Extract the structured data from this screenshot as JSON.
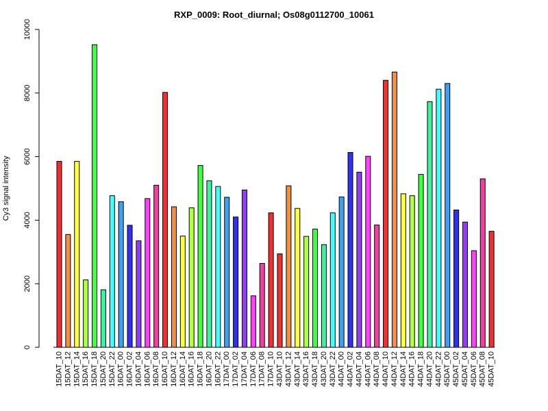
{
  "chart_data": {
    "type": "bar",
    "title": "RXP_0009: Root_diurnal; Os08g0112700_10061",
    "xlabel": "",
    "ylabel": "Cy3 signal intensity",
    "ylim": [
      0,
      10000
    ],
    "yticks": [
      0,
      2000,
      4000,
      6000,
      8000,
      10000
    ],
    "grid": false,
    "legend": "none",
    "categories": [
      "15DAT_10",
      "15DAT_12",
      "15DAT_14",
      "15DAT_16",
      "15DAT_18",
      "15DAT_20",
      "15DAT_22",
      "16DAT_00",
      "16DAT_02",
      "16DAT_04",
      "16DAT_06",
      "16DAT_08",
      "16DAT_10",
      "16DAT_12",
      "16DAT_14",
      "16DAT_16",
      "16DAT_18",
      "16DAT_20",
      "16DAT_22",
      "17DAT_00",
      "17DAT_02",
      "17DAT_04",
      "17DAT_06",
      "17DAT_08",
      "17DAT_10",
      "43DAT_10",
      "43DAT_12",
      "43DAT_14",
      "43DAT_16",
      "43DAT_18",
      "43DAT_20",
      "43DAT_22",
      "44DAT_00",
      "44DAT_02",
      "44DAT_04",
      "44DAT_06",
      "44DAT_08",
      "44DAT_10",
      "44DAT_12",
      "44DAT_14",
      "44DAT_16",
      "44DAT_18",
      "44DAT_20",
      "44DAT_22",
      "45DAT_00",
      "45DAT_02",
      "45DAT_04",
      "45DAT_06",
      "45DAT_08",
      "45DAT_10"
    ],
    "values": [
      5850,
      3550,
      5850,
      2120,
      9520,
      1810,
      4770,
      4580,
      3840,
      3350,
      4680,
      5100,
      8020,
      4420,
      3500,
      4390,
      5720,
      5240,
      5060,
      4720,
      4100,
      4950,
      1620,
      2640,
      4230,
      2940,
      5080,
      4370,
      3490,
      3720,
      3230,
      4230,
      4730,
      6130,
      5510,
      6010,
      3850,
      8400,
      8660,
      4830,
      4770,
      5440,
      7730,
      8120,
      8300,
      4320,
      3940,
      3040,
      5300,
      3650
    ],
    "colors": [
      "#f03030",
      "#f09040",
      "#ffff40",
      "#b0ff40",
      "#40ff40",
      "#40f0a0",
      "#40ffff",
      "#40a0f0",
      "#3030f0",
      "#9040f0",
      "#ff40ff",
      "#f040a0",
      "#f03030",
      "#f09040",
      "#ffff40",
      "#b0ff40",
      "#40ff40",
      "#40f0a0",
      "#40ffff",
      "#40a0f0",
      "#3030f0",
      "#9040f0",
      "#ff40ff",
      "#f040a0",
      "#f03030",
      "#f03030",
      "#f09040",
      "#ffff40",
      "#b0ff40",
      "#40ff40",
      "#40f0a0",
      "#40ffff",
      "#40a0f0",
      "#3030f0",
      "#9040f0",
      "#ff40ff",
      "#f040a0",
      "#f03030",
      "#f09040",
      "#ffff40",
      "#b0ff40",
      "#40ff40",
      "#40f0a0",
      "#40ffff",
      "#40a0f0",
      "#3030f0",
      "#9040f0",
      "#ff40ff",
      "#f040a0",
      "#f03030"
    ]
  }
}
